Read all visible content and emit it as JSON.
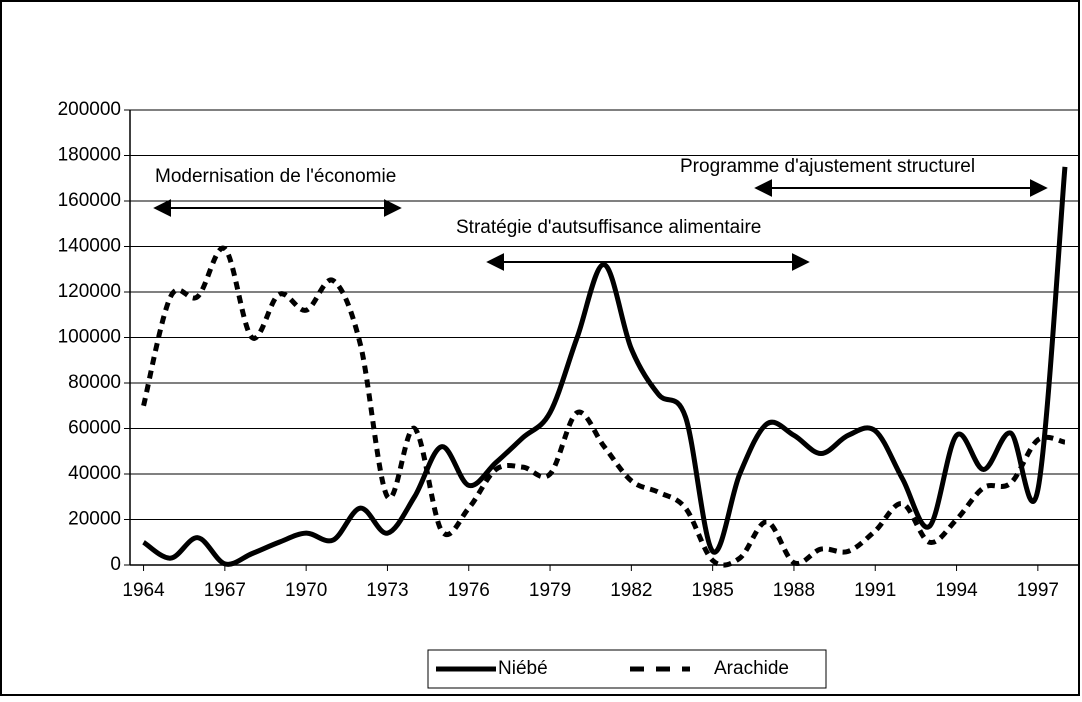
{
  "chart_data": {
    "type": "line",
    "categories": [
      "1964",
      null,
      null,
      "1967",
      null,
      null,
      "1970",
      null,
      null,
      "1973",
      null,
      null,
      "1976",
      null,
      null,
      "1979",
      null,
      null,
      "1982",
      null,
      null,
      "1985",
      null,
      null,
      "1988",
      null,
      null,
      "1991",
      null,
      null,
      "1994",
      null,
      null,
      "1997",
      null
    ],
    "series": [
      {
        "name": "Niébé",
        "color": "#000000",
        "dash": "solid",
        "values": [
          10000,
          3000,
          12000,
          500,
          5000,
          10000,
          14000,
          11000,
          25000,
          14000,
          30000,
          52000,
          35000,
          45000,
          56000,
          67000,
          100000,
          132000,
          95000,
          75000,
          65000,
          6000,
          40000,
          62000,
          57000,
          49000,
          57000,
          59000,
          38000,
          17000,
          57000,
          42000,
          58000,
          33000,
          175000
        ]
      },
      {
        "name": "Arachide",
        "color": "#000000",
        "dash": "dashed",
        "values": [
          70000,
          118000,
          118000,
          139000,
          100000,
          119000,
          112000,
          125000,
          97000,
          30000,
          60000,
          15000,
          25000,
          42000,
          43000,
          40000,
          67000,
          52000,
          37000,
          32000,
          25000,
          2000,
          3000,
          19000,
          1000,
          7000,
          6000,
          15000,
          27000,
          10000,
          20000,
          34000,
          36000,
          55000,
          54000
        ]
      }
    ],
    "ylim": [
      0,
      200000
    ],
    "yticks": [
      0,
      20000,
      40000,
      60000,
      80000,
      100000,
      120000,
      140000,
      160000,
      180000,
      200000
    ],
    "grid": true,
    "legend": "bottom",
    "annotations": [
      "Modernisation de l'économie",
      "Stratégie d'autsuffisance alimentaire",
      "Programme d'ajustement structurel"
    ]
  }
}
